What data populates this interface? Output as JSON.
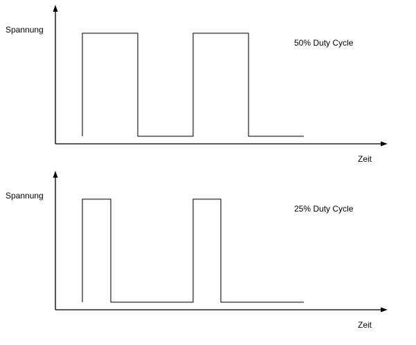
{
  "colors": {
    "line": "#000000",
    "text": "#000000",
    "background": "#ffffff"
  },
  "panels": [
    {
      "title": "50% Duty Cycle",
      "y_axis_label": "Spannung",
      "x_axis_label": "Zeit",
      "duty_cycle_percent": 50,
      "axis": {
        "origin": [
          80,
          208
        ],
        "y_tip": [
          80,
          7
        ],
        "x_tip": [
          560,
          208
        ]
      },
      "waveform_points": [
        [
          119,
          197
        ],
        [
          119,
          48
        ],
        [
          199,
          48
        ],
        [
          199,
          197
        ],
        [
          279,
          197
        ],
        [
          279,
          48
        ],
        [
          359,
          48
        ],
        [
          359,
          197
        ],
        [
          439,
          197
        ]
      ]
    },
    {
      "title": "25% Duty Cycle",
      "y_axis_label": "Spannung",
      "x_axis_label": "Zeit",
      "duty_cycle_percent": 25,
      "axis": {
        "origin": [
          80,
          208
        ],
        "y_tip": [
          80,
          7
        ],
        "x_tip": [
          560,
          208
        ]
      },
      "waveform_points": [
        [
          119,
          197
        ],
        [
          119,
          48
        ],
        [
          160,
          48
        ],
        [
          160,
          197
        ],
        [
          279,
          197
        ],
        [
          279,
          48
        ],
        [
          319,
          48
        ],
        [
          319,
          197
        ],
        [
          439,
          197
        ]
      ]
    }
  ]
}
